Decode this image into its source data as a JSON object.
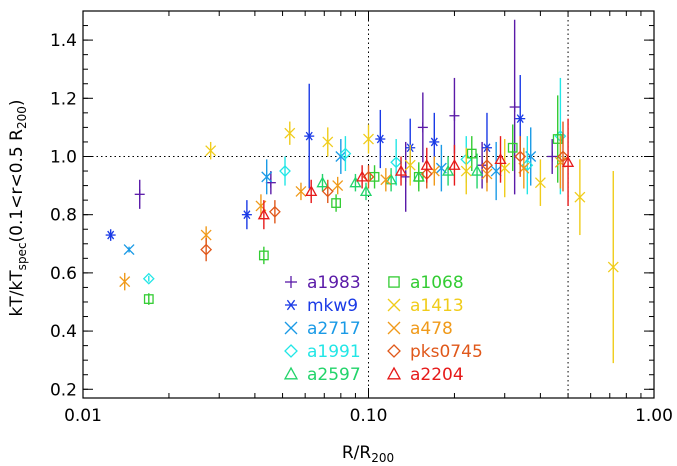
{
  "chart_data": {
    "type": "scatter",
    "xlabel": "R/R",
    "xlabel_sub": "200",
    "ylabel_parts": {
      "kt": "kT/kT",
      "spec": "spec",
      "range": "(0.1<r<0.5  R",
      "r200": "200",
      "close": ")"
    },
    "xscale": "log",
    "xlim": [
      0.01,
      1.0
    ],
    "ylim": [
      0.17,
      1.5
    ],
    "xticks": [
      {
        "value": 0.01,
        "label": "0.01"
      },
      {
        "value": 0.1,
        "label": "0.10"
      },
      {
        "value": 1.0,
        "label": "1.00"
      }
    ],
    "yticks": [
      {
        "value": 0.2,
        "label": "0.2"
      },
      {
        "value": 0.4,
        "label": "0.4"
      },
      {
        "value": 0.6,
        "label": "0.6"
      },
      {
        "value": 0.8,
        "label": "0.8"
      },
      {
        "value": 1.0,
        "label": "1.0"
      },
      {
        "value": 1.2,
        "label": "1.2"
      },
      {
        "value": 1.4,
        "label": "1.4"
      }
    ],
    "reference_lines": {
      "horizontal": [
        1.0
      ],
      "vertical": [
        0.1,
        0.5
      ]
    },
    "series": [
      {
        "name": "a1983",
        "color": "#5a1aa8",
        "marker": "plus",
        "points": [
          {
            "x": 0.0158,
            "y": 0.87,
            "err": 0.05
          },
          {
            "x": 0.0455,
            "y": 0.91,
            "err": 0.04
          },
          {
            "x": 0.135,
            "y": 0.93,
            "err": 0.12
          },
          {
            "x": 0.155,
            "y": 1.1,
            "err": 0.12
          },
          {
            "x": 0.2,
            "y": 1.14,
            "err": 0.13
          },
          {
            "x": 0.25,
            "y": 0.97,
            "err": 0.08
          },
          {
            "x": 0.325,
            "y": 1.17,
            "err": 0.3
          },
          {
            "x": 0.44,
            "y": 1.0,
            "err": 0.06
          }
        ]
      },
      {
        "name": "mkw9",
        "color": "#1a3ae6",
        "marker": "asterisk",
        "points": [
          {
            "x": 0.0125,
            "y": 0.73,
            "err": 0.02
          },
          {
            "x": 0.0375,
            "y": 0.8,
            "err": 0.05
          },
          {
            "x": 0.062,
            "y": 1.07,
            "err": 0.18
          },
          {
            "x": 0.11,
            "y": 1.06,
            "err": 0.1
          },
          {
            "x": 0.14,
            "y": 1.03,
            "err": 0.1
          },
          {
            "x": 0.17,
            "y": 1.05,
            "err": 0.1
          },
          {
            "x": 0.26,
            "y": 1.03,
            "err": 0.12
          },
          {
            "x": 0.34,
            "y": 1.13,
            "err": 0.15
          }
        ]
      },
      {
        "name": "a2717",
        "color": "#1a9ae6",
        "marker": "cross",
        "points": [
          {
            "x": 0.0145,
            "y": 0.68,
            "err": 0.01
          },
          {
            "x": 0.044,
            "y": 0.93,
            "err": 0.06
          },
          {
            "x": 0.08,
            "y": 1.0,
            "err": 0.06
          },
          {
            "x": 0.18,
            "y": 0.96,
            "err": 0.08
          },
          {
            "x": 0.28,
            "y": 0.95,
            "err": 0.1
          },
          {
            "x": 0.37,
            "y": 1.0,
            "err": 0.1
          }
        ]
      },
      {
        "name": "a1991",
        "color": "#22e6e6",
        "marker": "diamond",
        "points": [
          {
            "x": 0.017,
            "y": 0.58,
            "err": 0.01
          },
          {
            "x": 0.051,
            "y": 0.95,
            "err": 0.05
          },
          {
            "x": 0.083,
            "y": 1.01,
            "err": 0.06
          },
          {
            "x": 0.125,
            "y": 0.98,
            "err": 0.08
          },
          {
            "x": 0.22,
            "y": 0.99,
            "err": 0.08
          },
          {
            "x": 0.36,
            "y": 0.97,
            "err": 0.1
          },
          {
            "x": 0.47,
            "y": 1.07,
            "err": 0.2
          }
        ]
      },
      {
        "name": "a2597",
        "color": "#22d46a",
        "marker": "triangle",
        "points": [
          {
            "x": 0.069,
            "y": 0.91,
            "err": 0.03
          },
          {
            "x": 0.09,
            "y": 0.91,
            "err": 0.03
          },
          {
            "x": 0.098,
            "y": 0.88,
            "err": 0.03
          },
          {
            "x": 0.12,
            "y": 0.92,
            "err": 0.04
          },
          {
            "x": 0.15,
            "y": 0.93,
            "err": 0.04
          },
          {
            "x": 0.19,
            "y": 0.95,
            "err": 0.05
          },
          {
            "x": 0.24,
            "y": 0.95,
            "err": 0.06
          }
        ]
      },
      {
        "name": "a1068",
        "color": "#33cc33",
        "marker": "square",
        "points": [
          {
            "x": 0.017,
            "y": 0.51,
            "err": 0.02
          },
          {
            "x": 0.043,
            "y": 0.66,
            "err": 0.03
          },
          {
            "x": 0.077,
            "y": 0.84,
            "err": 0.03
          },
          {
            "x": 0.105,
            "y": 0.93,
            "err": 0.04
          },
          {
            "x": 0.15,
            "y": 0.93,
            "err": 0.05
          },
          {
            "x": 0.23,
            "y": 1.01,
            "err": 0.06
          },
          {
            "x": 0.32,
            "y": 1.03,
            "err": 0.08
          },
          {
            "x": 0.46,
            "y": 1.06,
            "err": 0.15
          }
        ]
      },
      {
        "name": "a1413",
        "color": "#f0cc1a",
        "marker": "cross",
        "points": [
          {
            "x": 0.028,
            "y": 1.02,
            "err": 0.03
          },
          {
            "x": 0.053,
            "y": 1.08,
            "err": 0.04
          },
          {
            "x": 0.072,
            "y": 1.05,
            "err": 0.05
          },
          {
            "x": 0.1,
            "y": 1.06,
            "err": 0.05
          },
          {
            "x": 0.14,
            "y": 0.97,
            "err": 0.07
          },
          {
            "x": 0.22,
            "y": 0.95,
            "err": 0.08
          },
          {
            "x": 0.3,
            "y": 0.96,
            "err": 0.1
          },
          {
            "x": 0.4,
            "y": 0.91,
            "err": 0.08
          },
          {
            "x": 0.55,
            "y": 0.86,
            "err": 0.13
          },
          {
            "x": 0.72,
            "y": 0.62,
            "err": 0.33
          }
        ]
      },
      {
        "name": "a478",
        "color": "#f09a1a",
        "marker": "cross",
        "points": [
          {
            "x": 0.014,
            "y": 0.57,
            "err": 0.03
          },
          {
            "x": 0.027,
            "y": 0.73,
            "err": 0.03
          },
          {
            "x": 0.042,
            "y": 0.83,
            "err": 0.04
          },
          {
            "x": 0.058,
            "y": 0.88,
            "err": 0.03
          },
          {
            "x": 0.078,
            "y": 0.9,
            "err": 0.03
          },
          {
            "x": 0.115,
            "y": 0.92,
            "err": 0.04
          },
          {
            "x": 0.17,
            "y": 0.95,
            "err": 0.05
          },
          {
            "x": 0.26,
            "y": 0.94,
            "err": 0.06
          },
          {
            "x": 0.35,
            "y": 0.96,
            "err": 0.07
          },
          {
            "x": 0.47,
            "y": 0.98,
            "err": 0.09
          }
        ]
      },
      {
        "name": "pks0745",
        "color": "#e0581a",
        "marker": "diamond",
        "points": [
          {
            "x": 0.027,
            "y": 0.68,
            "err": 0.04
          },
          {
            "x": 0.047,
            "y": 0.81,
            "err": 0.04
          },
          {
            "x": 0.072,
            "y": 0.88,
            "err": 0.04
          },
          {
            "x": 0.1,
            "y": 0.93,
            "err": 0.04
          },
          {
            "x": 0.16,
            "y": 0.94,
            "err": 0.05
          },
          {
            "x": 0.26,
            "y": 0.97,
            "err": 0.06
          },
          {
            "x": 0.34,
            "y": 1.0,
            "err": 0.07
          },
          {
            "x": 0.48,
            "y": 1.0,
            "err": 0.12
          }
        ]
      },
      {
        "name": "a2204",
        "color": "#e61a1a",
        "marker": "triangle",
        "points": [
          {
            "x": 0.043,
            "y": 0.8,
            "err": 0.05
          },
          {
            "x": 0.063,
            "y": 0.88,
            "err": 0.04
          },
          {
            "x": 0.095,
            "y": 0.93,
            "err": 0.04
          },
          {
            "x": 0.13,
            "y": 0.95,
            "err": 0.05
          },
          {
            "x": 0.16,
            "y": 0.97,
            "err": 0.06
          },
          {
            "x": 0.2,
            "y": 0.97,
            "err": 0.07
          },
          {
            "x": 0.29,
            "y": 0.99,
            "err": 0.08
          },
          {
            "x": 0.5,
            "y": 0.98,
            "err": 0.15
          }
        ]
      }
    ],
    "legend": {
      "columns": [
        [
          "a1983",
          "mkw9",
          "a2717",
          "a1991",
          "a2597"
        ],
        [
          "a1068",
          "a1413",
          "a478",
          "pks0745",
          "a2204"
        ]
      ]
    }
  }
}
